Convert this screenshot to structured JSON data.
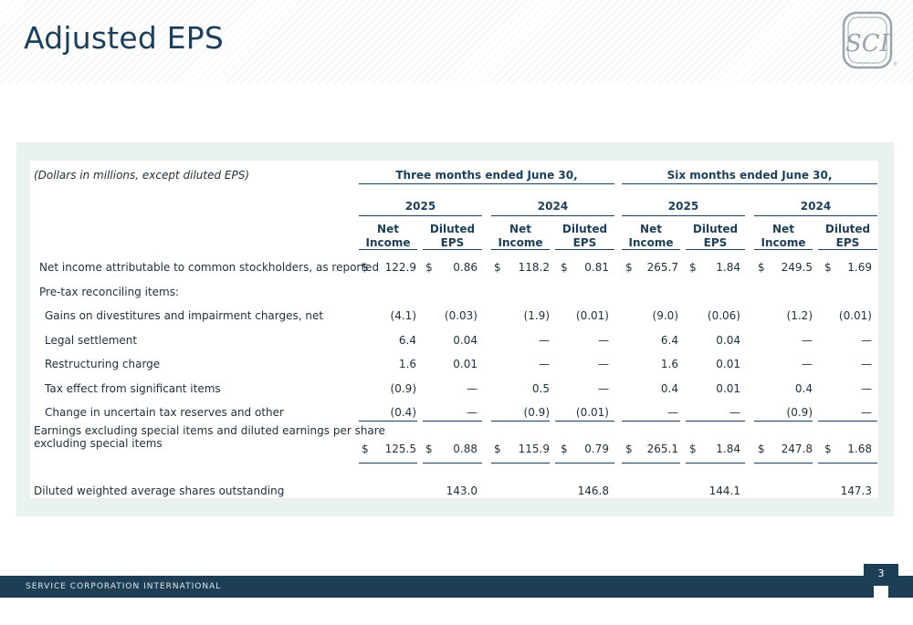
{
  "page": {
    "title": "Adjusted EPS",
    "footer": "SERVICE CORPORATION INTERNATIONAL",
    "page_number": "3",
    "logo_text": "SCI"
  },
  "table": {
    "note": "(Dollars in millions, except diluted EPS)",
    "period_headers": [
      "Three months ended June 30,",
      "Six months ended June 30,"
    ],
    "year_headers": [
      "2025",
      "2024",
      "2025",
      "2024"
    ],
    "col_headers": [
      {
        "l1": "Net",
        "l2": "Income"
      },
      {
        "l1": "Diluted",
        "l2": "EPS"
      },
      {
        "l1": "Net",
        "l2": "Income"
      },
      {
        "l1": "Diluted",
        "l2": "EPS"
      },
      {
        "l1": "Net",
        "l2": "Income"
      },
      {
        "l1": "Diluted",
        "l2": "EPS"
      },
      {
        "l1": "Net",
        "l2": "Income"
      },
      {
        "l1": "Diluted",
        "l2": "EPS"
      }
    ],
    "dollar_sign": "$",
    "rows": [
      {
        "label": "Net income attributable to common stockholders, as reported",
        "values": [
          "122.9",
          "0.86",
          "118.2",
          "0.81",
          "265.7",
          "1.84",
          "249.5",
          "1.69"
        ]
      },
      {
        "label": "Pre-tax reconciling items:",
        "values": []
      },
      {
        "label": "Gains on divestitures and impairment charges, net",
        "values": [
          "(4.1)",
          "(0.03)",
          "(1.9)",
          "(0.01)",
          "(9.0)",
          "(0.06)",
          "(1.2)",
          "(0.01)"
        ]
      },
      {
        "label": "Legal settlement",
        "values": [
          "6.4",
          "0.04",
          "—",
          "—",
          "6.4",
          "0.04",
          "—",
          "—"
        ]
      },
      {
        "label": "Restructuring charge",
        "values": [
          "1.6",
          "0.01",
          "—",
          "—",
          "1.6",
          "0.01",
          "—",
          "—"
        ]
      },
      {
        "label": "Tax effect from significant items",
        "values": [
          "(0.9)",
          "—",
          "0.5",
          "—",
          "0.4",
          "0.01",
          "0.4",
          "—"
        ]
      },
      {
        "label": "Change in uncertain tax reserves and other",
        "values": [
          "(0.4)",
          "—",
          "(0.9)",
          "(0.01)",
          "—",
          "—",
          "(0.9)",
          "—"
        ]
      },
      {
        "label_l1": "Earnings excluding special items and diluted earnings per share",
        "label_l2": "excluding special items",
        "values": [
          "125.5",
          "0.88",
          "115.9",
          "0.79",
          "265.1",
          "1.84",
          "247.8",
          "1.68"
        ]
      },
      {
        "label": "Diluted weighted average shares outstanding",
        "values": [
          "143.0",
          "146.8",
          "144.1",
          "147.3"
        ]
      }
    ]
  }
}
